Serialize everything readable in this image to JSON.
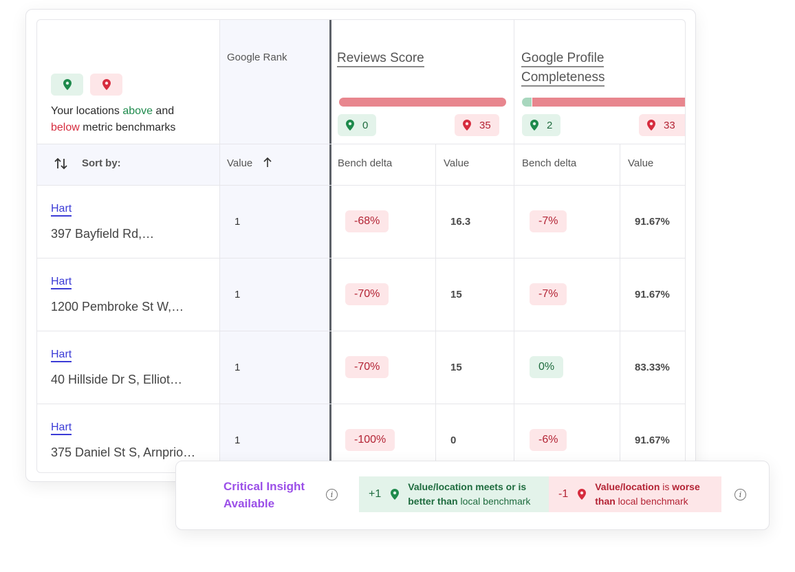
{
  "legend": {
    "line1_prefix": "Your locations ",
    "above": "above",
    "and": " and",
    "below": "below",
    "line2_suffix": " metric benchmarks"
  },
  "columns": {
    "rank": "Google Rank",
    "reviews": {
      "title": "Reviews Score",
      "above_count": "0",
      "below_count": "35",
      "above_fraction": 0
    },
    "profile": {
      "title_line1": "Google Profile",
      "title_line2": "Completeness",
      "above_count": "2",
      "below_count": "33",
      "above_fraction": 0.057
    }
  },
  "sort": {
    "label": "Sort by:",
    "value_label": "Value",
    "bench_delta_label": "Bench delta",
    "value_col_label": "Value"
  },
  "rows": [
    {
      "name": "Hart",
      "address": "397 Bayfield Rd,…",
      "rank": "1",
      "reviews_delta": "-68%",
      "reviews_value": "16.3",
      "profile_delta": "-7%",
      "profile_value": "91.67%"
    },
    {
      "name": "Hart",
      "address": "1200 Pembroke St W,…",
      "rank": "1",
      "reviews_delta": "-70%",
      "reviews_value": "15",
      "profile_delta": "-7%",
      "profile_value": "91.67%"
    },
    {
      "name": "Hart",
      "address": "40 Hillside Dr S, Elliot…",
      "rank": "1",
      "reviews_delta": "-70%",
      "reviews_value": "15",
      "profile_delta": "0%",
      "profile_value": "83.33%"
    },
    {
      "name": "Hart",
      "address": "375 Daniel St S, Arnprio…",
      "rank": "1",
      "reviews_delta": "-100%",
      "reviews_value": "0",
      "profile_delta": "-6%",
      "profile_value": "91.67%"
    }
  ],
  "insight": {
    "title_line1": "Critical Insight",
    "title_line2": "Available",
    "good_sign": "+1",
    "good_bold1": "Value/location meets or is",
    "good_bold2": "better than",
    "good_rest": " local benchmark",
    "bad_sign": "-1",
    "bad_bold1": "Value/location",
    "bad_mid": " is ",
    "bad_bold2": "worse",
    "bad_bold3": "than",
    "bad_rest": " local benchmark"
  },
  "colors": {
    "green": "#1e8a4c",
    "red": "#d62c3e",
    "link": "#3b3bd6",
    "insight_purple": "#9b4fe8"
  }
}
